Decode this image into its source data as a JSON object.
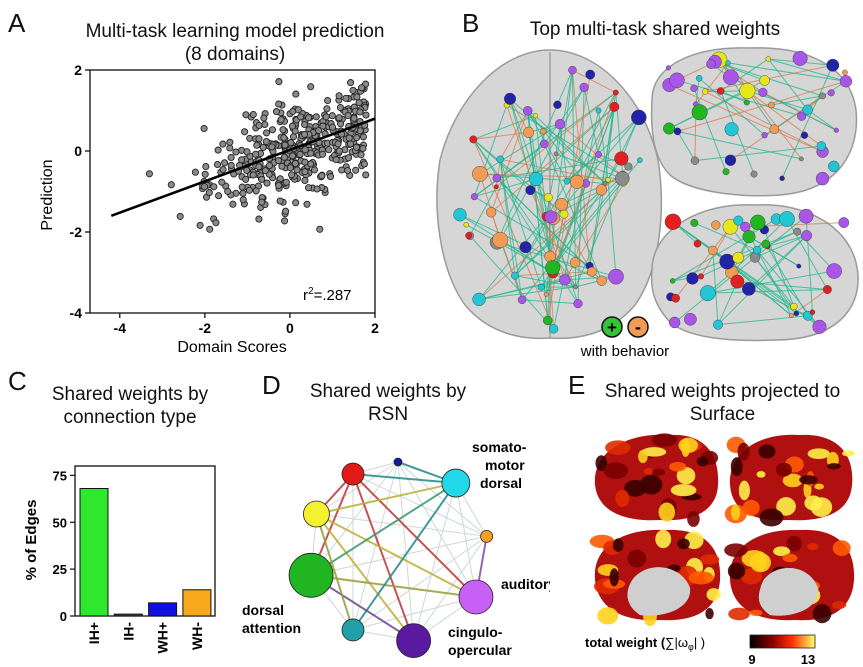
{
  "panels": {
    "A": {
      "letter": "A",
      "title_line1": "Multi-task learning model prediction",
      "title_line2": "(8 domains)",
      "xlabel": "Domain Scores",
      "ylabel": "Prediction",
      "xticks": [
        "-4",
        "-2",
        "0",
        "2"
      ],
      "yticks": [
        "2",
        "0",
        "-2",
        "-4"
      ],
      "r2_label": "r",
      "r2_sup": "2",
      "r2_value": "=.287"
    },
    "B": {
      "letter": "B",
      "title": "Top multi-task shared weights",
      "plus_symbol": "+",
      "minus_symbol": "-",
      "legend_text": "with behavior"
    },
    "C": {
      "letter": "C",
      "title_line1": "Shared weights by",
      "title_line2": "connection type",
      "ylabel": "% of Edges",
      "yticks": [
        "75",
        "50",
        "25",
        "0"
      ]
    },
    "D": {
      "letter": "D",
      "title_line1": "Shared weights by",
      "title_line2": "RSN",
      "label_somato_1": "somato-",
      "label_somato_2": "motor",
      "label_somato_3": "dorsal",
      "label_auditory": "auditory",
      "label_cingulo_1": "cingulo-",
      "label_cingulo_2": "opercular",
      "label_dorsal_1": "dorsal",
      "label_dorsal_2": "attention"
    },
    "E": {
      "letter": "E",
      "title_line1": "Shared weights projected to",
      "title_line2": "Surface",
      "colorbar_label": "total weight (",
      "colorbar_sum": "∑|ω",
      "colorbar_sub": "φ",
      "colorbar_close": "| )",
      "colorbar_min": "9",
      "colorbar_max": "13"
    }
  },
  "chart_data": [
    {
      "type": "scatter",
      "panel": "A",
      "title": "Multi-task learning model prediction (8 domains)",
      "xlabel": "Domain Scores",
      "ylabel": "Prediction",
      "xlim": [
        -4.7,
        2.0
      ],
      "ylim": [
        -4,
        2
      ],
      "fit_line": {
        "x": [
          -4.2,
          2.0
        ],
        "y": [
          -1.6,
          0.8
        ]
      },
      "r2": 0.287,
      "marker_color": "#8a8a8a"
    },
    {
      "type": "bar",
      "panel": "C",
      "title": "Shared weights by connection type",
      "ylabel": "% of Edges",
      "categories": [
        "IH+",
        "IH-",
        "WH+",
        "WH-"
      ],
      "values": [
        68,
        1,
        7,
        14
      ],
      "colors": [
        "#2ee82e",
        "#444444",
        "#1010e0",
        "#f7a81c"
      ],
      "ylim": [
        0,
        80
      ]
    }
  ]
}
